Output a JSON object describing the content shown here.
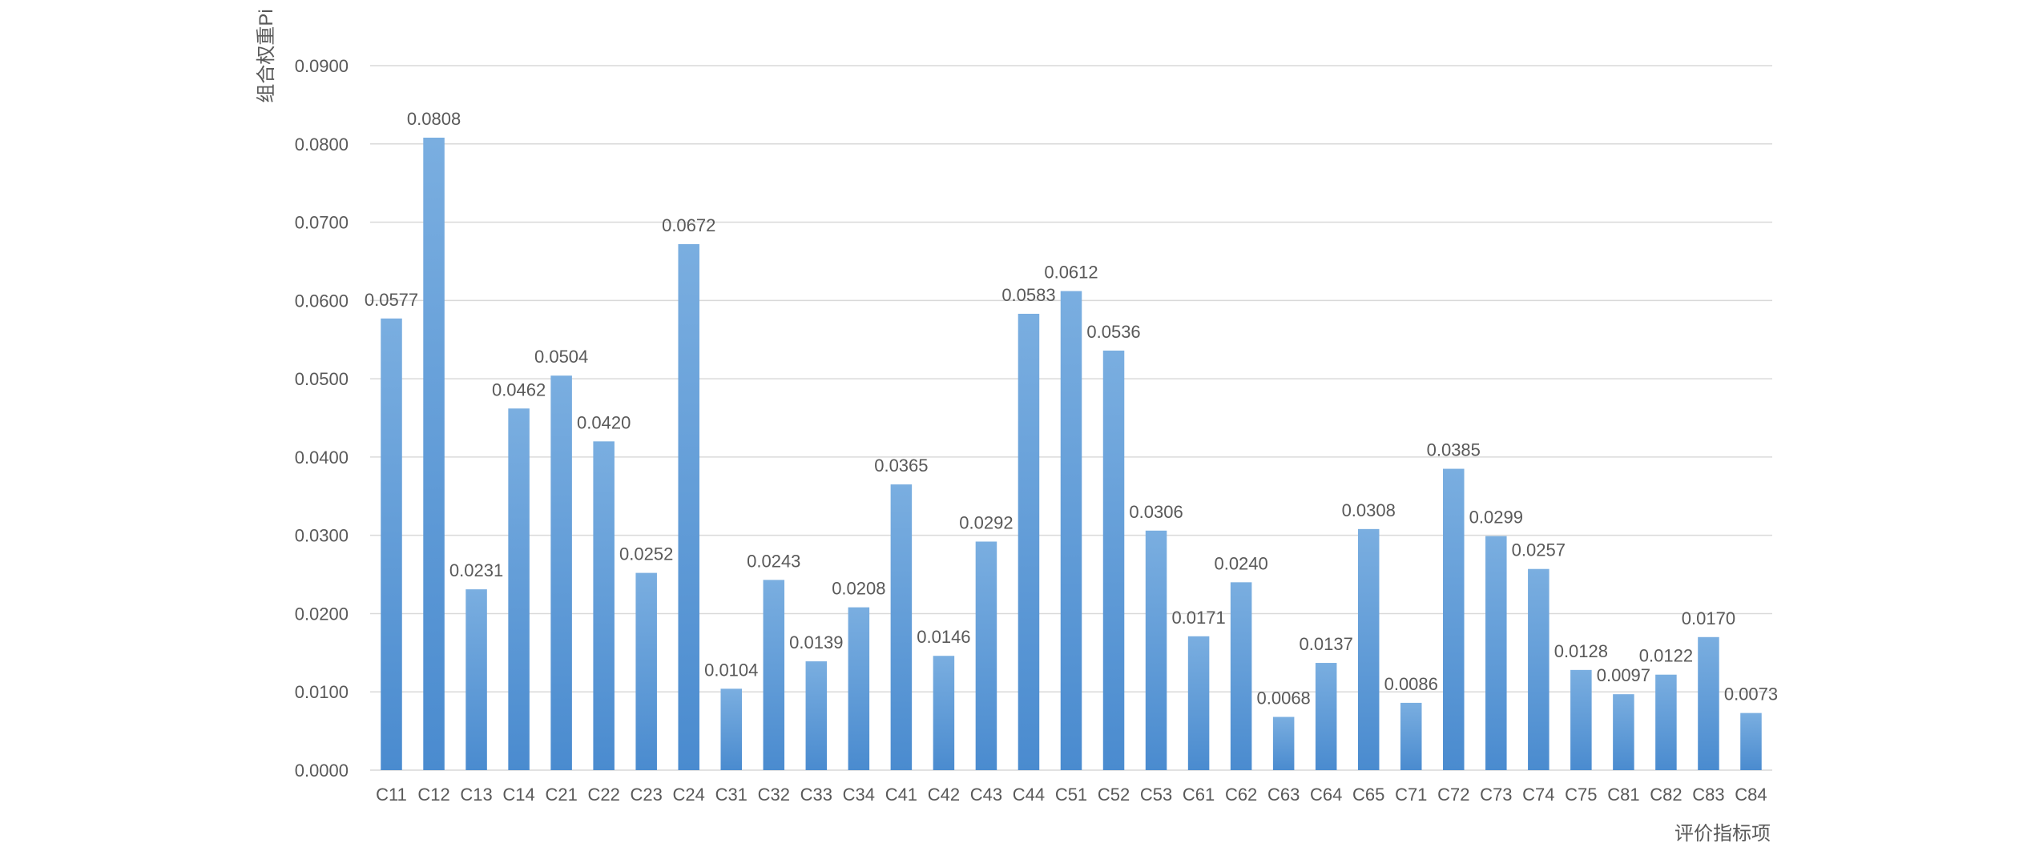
{
  "chart_data": {
    "type": "bar",
    "ylabel": "组合权重Pi",
    "xlabel": "评价指标项",
    "ylim": [
      0,
      0.09
    ],
    "y_ticks": [
      "0.0000",
      "0.0100",
      "0.0200",
      "0.0300",
      "0.0400",
      "0.0500",
      "0.0600",
      "0.0700",
      "0.0800",
      "0.0900"
    ],
    "grid": true,
    "bar_color_top": "#7aaee0",
    "bar_color_bottom": "#4a8bcf",
    "categories": [
      "C11",
      "C12",
      "C13",
      "C14",
      "C21",
      "C22",
      "C23",
      "C24",
      "C31",
      "C32",
      "C33",
      "C34",
      "C41",
      "C42",
      "C43",
      "C44",
      "C51",
      "C52",
      "C53",
      "C61",
      "C62",
      "C63",
      "C64",
      "C65",
      "C71",
      "C72",
      "C73",
      "C74",
      "C75",
      "C81",
      "C82",
      "C83",
      "C84"
    ],
    "values": [
      0.0577,
      0.0808,
      0.0231,
      0.0462,
      0.0504,
      0.042,
      0.0252,
      0.0672,
      0.0104,
      0.0243,
      0.0139,
      0.0208,
      0.0365,
      0.0146,
      0.0292,
      0.0583,
      0.0612,
      0.0536,
      0.0306,
      0.0171,
      0.024,
      0.0068,
      0.0137,
      0.0308,
      0.0086,
      0.0385,
      0.0299,
      0.0257,
      0.0128,
      0.0097,
      0.0122,
      0.017,
      0.0073
    ],
    "data_labels": [
      "0.0577",
      "0.0808",
      "0.0231",
      "0.0462",
      "0.0504",
      "0.0420",
      "0.0252",
      "0.0672",
      "0.0104",
      "0.0243",
      "0.0139",
      "0.0208",
      "0.0365",
      "0.0146",
      "0.0292",
      "0.0583",
      "0.0612",
      "0.0536",
      "0.0306",
      "0.0171",
      "0.0240",
      "0.0068",
      "0.0137",
      "0.0308",
      "0.0086",
      "0.0385",
      "0.0299",
      "0.0257",
      "0.0128",
      "0.0097",
      "0.0122",
      "0.0170",
      "0.0073"
    ]
  }
}
